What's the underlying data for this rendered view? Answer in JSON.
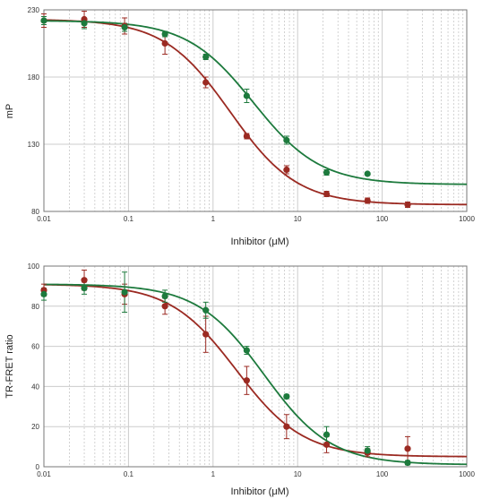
{
  "colors": {
    "red": "#9b2a22",
    "green": "#1d7a3d",
    "major_grid": "#cccccc",
    "minor_grid": "#c8c8c8",
    "frame": "#777777"
  },
  "chart_data": [
    {
      "type": "scatter",
      "xlabel": "Inhibitor (μM)",
      "ylabel": "mP",
      "xscale": "log",
      "xlim": [
        0.01,
        1000
      ],
      "ylim": [
        80,
        230
      ],
      "xticks": [
        "0.01",
        "0.1",
        "1",
        "10",
        "100",
        "1000"
      ],
      "yticks": [
        "80",
        "130",
        "180",
        "230"
      ],
      "grid": true,
      "series": [
        {
          "color": "#9b2a22",
          "x": [
            0.01,
            0.03,
            0.09,
            0.27,
            0.82,
            2.5,
            7.4,
            22,
            67,
            200
          ],
          "y": [
            222,
            223,
            218,
            205,
            176,
            136,
            111,
            93,
            88,
            85
          ],
          "err": [
            5,
            6,
            6,
            8,
            4,
            2,
            3,
            2,
            2,
            2
          ],
          "curve": {
            "top": 223,
            "bottom": 85,
            "ic50": 1.6,
            "hill": 1.1
          }
        },
        {
          "color": "#1d7a3d",
          "x": [
            0.01,
            0.03,
            0.09,
            0.27,
            0.82,
            2.5,
            7.4,
            22,
            67
          ],
          "y": [
            222,
            220,
            217,
            212,
            195,
            166,
            133,
            109,
            108
          ],
          "err": [
            3,
            4,
            3,
            2,
            2,
            5,
            3,
            2,
            1
          ],
          "curve": {
            "top": 222,
            "bottom": 100,
            "ic50": 3.0,
            "hill": 1.1
          }
        }
      ]
    },
    {
      "type": "scatter",
      "xlabel": "Inhibitor (μM)",
      "ylabel": "TR-FRET ratio",
      "xscale": "log",
      "xlim": [
        0.01,
        1000
      ],
      "ylim": [
        0,
        100
      ],
      "xticks": [
        "0.01",
        "0.1",
        "1",
        "10",
        "100",
        "1000"
      ],
      "yticks": [
        "0",
        "20",
        "40",
        "60",
        "80",
        "100"
      ],
      "grid": true,
      "series": [
        {
          "color": "#9b2a22",
          "x": [
            0.01,
            0.03,
            0.09,
            0.27,
            0.82,
            2.5,
            7.4,
            22,
            67,
            200
          ],
          "y": [
            88,
            93,
            86,
            80,
            66,
            43,
            20,
            11,
            7,
            9
          ],
          "err": [
            3,
            5,
            5,
            4,
            9,
            7,
            6,
            4,
            2,
            6
          ],
          "curve": {
            "top": 91,
            "bottom": 5,
            "ic50": 1.9,
            "hill": 1.1
          }
        },
        {
          "color": "#1d7a3d",
          "x": [
            0.01,
            0.03,
            0.09,
            0.27,
            0.82,
            2.5,
            7.4,
            22,
            67,
            200
          ],
          "y": [
            86,
            89,
            87,
            85,
            78,
            58,
            35,
            16,
            8,
            2
          ],
          "err": [
            3,
            3,
            10,
            3,
            4,
            2,
            1,
            4,
            2,
            1
          ],
          "curve": {
            "top": 91,
            "bottom": 1,
            "ic50": 4.0,
            "hill": 1.1
          }
        }
      ]
    }
  ]
}
